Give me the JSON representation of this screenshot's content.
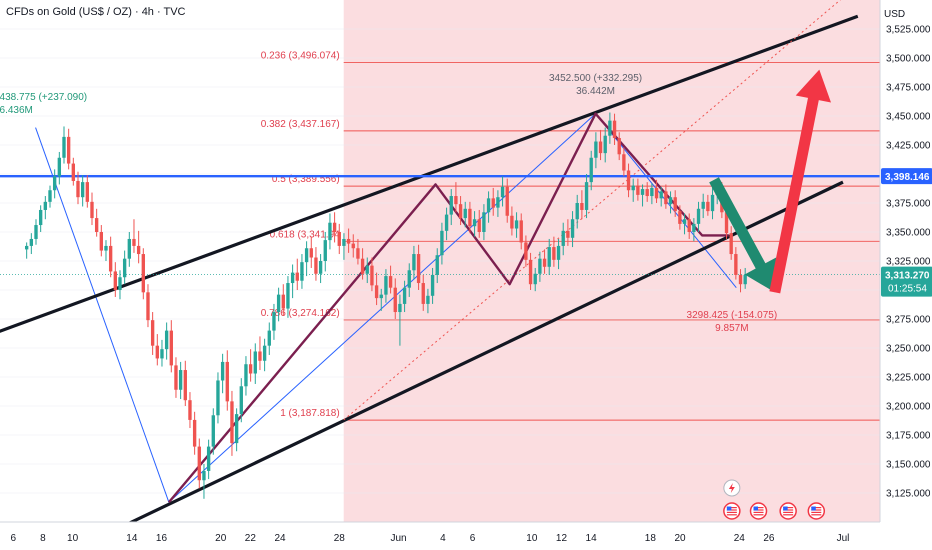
{
  "header": {
    "symbol_title": "CFDs on Gold (US$ / OZ) · 4h · TVC",
    "currency": "USD"
  },
  "colors": {
    "up": "#26a69a",
    "down": "#ef5350",
    "highlight_zone": "#fbdde0",
    "fib_line": "#ef5350",
    "resistance_line": "#2962ff",
    "channel_line": "#131722",
    "pattern_line": "#7b1f4f",
    "swing_line": "#2962ff",
    "arrow_green": "#1f8a70",
    "arrow_red": "#f23645"
  },
  "chart_data": {
    "type": "candlestick",
    "instrument": "CFDs on Gold (US$ / OZ)",
    "timeframe": "4h",
    "ylim": [
      3100,
      3550
    ],
    "y_ticks": [
      3125,
      3150,
      3175,
      3200,
      3225,
      3250,
      3275,
      3300,
      3325,
      3350,
      3375,
      3400,
      3425,
      3450,
      3475,
      3500,
      3525
    ],
    "y_tick_labels": [
      "3,125.000",
      "3,150.000",
      "3,175.000",
      "3,200.000",
      "3,225.000",
      "3,250.000",
      "3,275.000",
      "3,300.000",
      "3,325.000",
      "3,350.000",
      "3,375.000",
      "3,400.000",
      "3,425.000",
      "3,450.000",
      "3,475.000",
      "3,500.000",
      "3,525.000"
    ],
    "x_ticks": [
      {
        "label": "6",
        "d": 0
      },
      {
        "label": "8",
        "d": 2
      },
      {
        "label": "10",
        "d": 4
      },
      {
        "label": "14",
        "d": 8
      },
      {
        "label": "16",
        "d": 10
      },
      {
        "label": "20",
        "d": 14
      },
      {
        "label": "22",
        "d": 16
      },
      {
        "label": "24",
        "d": 18
      },
      {
        "label": "28",
        "d": 22
      },
      {
        "label": "Jun",
        "d": 26
      },
      {
        "label": "4",
        "d": 29
      },
      {
        "label": "6",
        "d": 31
      },
      {
        "label": "10",
        "d": 35
      },
      {
        "label": "12",
        "d": 37
      },
      {
        "label": "14",
        "d": 39
      },
      {
        "label": "18",
        "d": 43
      },
      {
        "label": "20",
        "d": 45
      },
      {
        "label": "24",
        "d": 49
      },
      {
        "label": "26",
        "d": 51
      },
      {
        "label": "Jul",
        "d": 56
      }
    ],
    "fib_levels": [
      {
        "label": "0.236 (3,496.074)",
        "value": 3496.074
      },
      {
        "label": "0.382 (3,437.167)",
        "value": 3437.167
      },
      {
        "label": "0.5 (3,389.556)",
        "value": 3389.556
      },
      {
        "label": "0.618 (3,341.94",
        "value": 3341.94
      },
      {
        "label": "0.786 (3,274.162)",
        "value": 3274.162
      },
      {
        "label": "1 (3,187.818)",
        "value": 3187.818
      }
    ],
    "highlight_zone": {
      "from_d": 22.3,
      "to_d": 58,
      "low": 3100,
      "high": 3550
    },
    "horizontal_line": {
      "value": 3398.146,
      "label": "3,398.146"
    },
    "last_price": {
      "value": 3313.27,
      "label": "3,313.270",
      "countdown": "01:25:54"
    },
    "channel_lines": [
      {
        "name": "upper",
        "points": [
          [
            -1,
            3264
          ],
          [
            57,
            3536
          ]
        ]
      },
      {
        "name": "lower",
        "points": [
          [
            7.5,
            3097
          ],
          [
            56,
            3393
          ]
        ]
      },
      {
        "name": "upper-dotted",
        "points": [
          [
            22.3,
            3188
          ],
          [
            56,
            3552
          ]
        ]
      }
    ],
    "zigzag_pattern": [
      [
        10.5,
        3117
      ],
      [
        28.5,
        3391
      ],
      [
        33.5,
        3305
      ],
      [
        39.3,
        3452
      ],
      [
        46.5,
        3347
      ],
      [
        48.3,
        3347
      ]
    ],
    "swing_lines": [
      [
        [
          1.5,
          3440
        ],
        [
          10.5,
          3117
        ]
      ],
      [
        [
          10.5,
          3117
        ],
        [
          39.3,
          3452
        ]
      ],
      [
        [
          39.3,
          3452
        ],
        [
          48.8,
          3302
        ]
      ]
    ],
    "arrows": [
      {
        "name": "green-down",
        "points": [
          [
            47.3,
            3395
          ],
          [
            51.4,
            3298
          ]
        ]
      },
      {
        "name": "red-up",
        "points": [
          [
            51.4,
            3298
          ],
          [
            54.4,
            3490
          ]
        ]
      }
    ],
    "annotations": [
      {
        "lines": [
          "438.775 (+237.090)",
          "6.436M"
        ],
        "at": [
          -1,
          3464
        ],
        "color": "green"
      },
      {
        "lines": [
          "3452.500 (+332.295)",
          "36.442M"
        ],
        "at": [
          39.3,
          3480
        ],
        "color": "grey"
      },
      {
        "lines": [
          "3298.425 (-154.075)",
          "9.857M"
        ],
        "at": [
          48.5,
          3276
        ],
        "color": "red"
      }
    ],
    "candles": [
      {
        "o": 3335,
        "h": 3341,
        "l": 3327,
        "c": 3338
      },
      {
        "o": 3338,
        "h": 3349,
        "l": 3331,
        "c": 3344
      },
      {
        "o": 3344,
        "h": 3361,
        "l": 3339,
        "c": 3356
      },
      {
        "o": 3356,
        "h": 3373,
        "l": 3350,
        "c": 3369
      },
      {
        "o": 3369,
        "h": 3381,
        "l": 3361,
        "c": 3376
      },
      {
        "o": 3376,
        "h": 3390,
        "l": 3371,
        "c": 3386
      },
      {
        "o": 3386,
        "h": 3404,
        "l": 3379,
        "c": 3398
      },
      {
        "o": 3398,
        "h": 3419,
        "l": 3391,
        "c": 3414
      },
      {
        "o": 3414,
        "h": 3441,
        "l": 3409,
        "c": 3432
      },
      {
        "o": 3432,
        "h": 3439,
        "l": 3404,
        "c": 3409
      },
      {
        "o": 3409,
        "h": 3414,
        "l": 3390,
        "c": 3394
      },
      {
        "o": 3394,
        "h": 3402,
        "l": 3374,
        "c": 3380
      },
      {
        "o": 3380,
        "h": 3399,
        "l": 3372,
        "c": 3393
      },
      {
        "o": 3393,
        "h": 3399,
        "l": 3371,
        "c": 3376
      },
      {
        "o": 3376,
        "h": 3384,
        "l": 3356,
        "c": 3362
      },
      {
        "o": 3362,
        "h": 3370,
        "l": 3346,
        "c": 3350
      },
      {
        "o": 3350,
        "h": 3356,
        "l": 3329,
        "c": 3334
      },
      {
        "o": 3334,
        "h": 3343,
        "l": 3325,
        "c": 3338
      },
      {
        "o": 3338,
        "h": 3346,
        "l": 3311,
        "c": 3316
      },
      {
        "o": 3316,
        "h": 3324,
        "l": 3294,
        "c": 3300
      },
      {
        "o": 3300,
        "h": 3317,
        "l": 3292,
        "c": 3311
      },
      {
        "o": 3311,
        "h": 3334,
        "l": 3305,
        "c": 3327
      },
      {
        "o": 3327,
        "h": 3350,
        "l": 3320,
        "c": 3344
      },
      {
        "o": 3344,
        "h": 3361,
        "l": 3332,
        "c": 3338
      },
      {
        "o": 3338,
        "h": 3351,
        "l": 3323,
        "c": 3331
      },
      {
        "o": 3331,
        "h": 3336,
        "l": 3292,
        "c": 3298
      },
      {
        "o": 3298,
        "h": 3305,
        "l": 3268,
        "c": 3274
      },
      {
        "o": 3274,
        "h": 3281,
        "l": 3244,
        "c": 3252
      },
      {
        "o": 3252,
        "h": 3262,
        "l": 3235,
        "c": 3241
      },
      {
        "o": 3241,
        "h": 3257,
        "l": 3234,
        "c": 3249
      },
      {
        "o": 3249,
        "h": 3272,
        "l": 3240,
        "c": 3265
      },
      {
        "o": 3265,
        "h": 3274,
        "l": 3229,
        "c": 3235
      },
      {
        "o": 3235,
        "h": 3242,
        "l": 3207,
        "c": 3214
      },
      {
        "o": 3214,
        "h": 3238,
        "l": 3206,
        "c": 3231
      },
      {
        "o": 3231,
        "h": 3239,
        "l": 3200,
        "c": 3205
      },
      {
        "o": 3205,
        "h": 3212,
        "l": 3181,
        "c": 3188
      },
      {
        "o": 3188,
        "h": 3195,
        "l": 3158,
        "c": 3165
      },
      {
        "o": 3165,
        "h": 3172,
        "l": 3129,
        "c": 3136
      },
      {
        "o": 3136,
        "h": 3150,
        "l": 3120,
        "c": 3144
      },
      {
        "o": 3144,
        "h": 3171,
        "l": 3137,
        "c": 3165
      },
      {
        "o": 3165,
        "h": 3198,
        "l": 3158,
        "c": 3192
      },
      {
        "o": 3192,
        "h": 3229,
        "l": 3185,
        "c": 3222
      },
      {
        "o": 3222,
        "h": 3245,
        "l": 3211,
        "c": 3238
      },
      {
        "o": 3238,
        "h": 3248,
        "l": 3196,
        "c": 3204
      },
      {
        "o": 3204,
        "h": 3213,
        "l": 3157,
        "c": 3168
      },
      {
        "o": 3168,
        "h": 3198,
        "l": 3161,
        "c": 3193
      },
      {
        "o": 3193,
        "h": 3224,
        "l": 3186,
        "c": 3217
      },
      {
        "o": 3217,
        "h": 3243,
        "l": 3209,
        "c": 3236
      },
      {
        "o": 3236,
        "h": 3249,
        "l": 3221,
        "c": 3228
      },
      {
        "o": 3228,
        "h": 3254,
        "l": 3219,
        "c": 3247
      },
      {
        "o": 3247,
        "h": 3260,
        "l": 3231,
        "c": 3239
      },
      {
        "o": 3239,
        "h": 3258,
        "l": 3230,
        "c": 3252
      },
      {
        "o": 3252,
        "h": 3272,
        "l": 3244,
        "c": 3265
      },
      {
        "o": 3265,
        "h": 3288,
        "l": 3257,
        "c": 3281
      },
      {
        "o": 3281,
        "h": 3302,
        "l": 3273,
        "c": 3296
      },
      {
        "o": 3296,
        "h": 3305,
        "l": 3278,
        "c": 3284
      },
      {
        "o": 3284,
        "h": 3312,
        "l": 3276,
        "c": 3306
      },
      {
        "o": 3306,
        "h": 3322,
        "l": 3293,
        "c": 3315
      },
      {
        "o": 3315,
        "h": 3327,
        "l": 3300,
        "c": 3308
      },
      {
        "o": 3308,
        "h": 3331,
        "l": 3301,
        "c": 3324
      },
      {
        "o": 3324,
        "h": 3342,
        "l": 3312,
        "c": 3336
      },
      {
        "o": 3336,
        "h": 3346,
        "l": 3319,
        "c": 3328
      },
      {
        "o": 3328,
        "h": 3337,
        "l": 3308,
        "c": 3314
      },
      {
        "o": 3314,
        "h": 3331,
        "l": 3306,
        "c": 3325
      },
      {
        "o": 3325,
        "h": 3350,
        "l": 3316,
        "c": 3343
      },
      {
        "o": 3343,
        "h": 3366,
        "l": 3335,
        "c": 3358
      },
      {
        "o": 3358,
        "h": 3367,
        "l": 3341,
        "c": 3350
      },
      {
        "o": 3350,
        "h": 3357,
        "l": 3331,
        "c": 3338
      },
      {
        "o": 3338,
        "h": 3349,
        "l": 3326,
        "c": 3344
      },
      {
        "o": 3344,
        "h": 3353,
        "l": 3332,
        "c": 3340
      },
      {
        "o": 3340,
        "h": 3348,
        "l": 3328,
        "c": 3336
      },
      {
        "o": 3336,
        "h": 3344,
        "l": 3322,
        "c": 3327
      },
      {
        "o": 3327,
        "h": 3336,
        "l": 3309,
        "c": 3314
      },
      {
        "o": 3314,
        "h": 3328,
        "l": 3306,
        "c": 3321
      },
      {
        "o": 3321,
        "h": 3328,
        "l": 3299,
        "c": 3304
      },
      {
        "o": 3304,
        "h": 3315,
        "l": 3287,
        "c": 3293
      },
      {
        "o": 3293,
        "h": 3301,
        "l": 3282,
        "c": 3296
      },
      {
        "o": 3296,
        "h": 3318,
        "l": 3289,
        "c": 3312
      },
      {
        "o": 3312,
        "h": 3321,
        "l": 3297,
        "c": 3302
      },
      {
        "o": 3302,
        "h": 3310,
        "l": 3275,
        "c": 3281
      },
      {
        "o": 3281,
        "h": 3296,
        "l": 3252,
        "c": 3288
      },
      {
        "o": 3288,
        "h": 3308,
        "l": 3281,
        "c": 3302
      },
      {
        "o": 3302,
        "h": 3323,
        "l": 3294,
        "c": 3317
      },
      {
        "o": 3317,
        "h": 3338,
        "l": 3309,
        "c": 3331
      },
      {
        "o": 3331,
        "h": 3339,
        "l": 3300,
        "c": 3306
      },
      {
        "o": 3306,
        "h": 3313,
        "l": 3282,
        "c": 3288
      },
      {
        "o": 3288,
        "h": 3301,
        "l": 3280,
        "c": 3295
      },
      {
        "o": 3295,
        "h": 3319,
        "l": 3288,
        "c": 3313
      },
      {
        "o": 3313,
        "h": 3336,
        "l": 3306,
        "c": 3330
      },
      {
        "o": 3330,
        "h": 3358,
        "l": 3322,
        "c": 3351
      },
      {
        "o": 3351,
        "h": 3371,
        "l": 3343,
        "c": 3365
      },
      {
        "o": 3365,
        "h": 3387,
        "l": 3356,
        "c": 3381
      },
      {
        "o": 3381,
        "h": 3393,
        "l": 3367,
        "c": 3374
      },
      {
        "o": 3374,
        "h": 3381,
        "l": 3356,
        "c": 3362
      },
      {
        "o": 3362,
        "h": 3376,
        "l": 3354,
        "c": 3370
      },
      {
        "o": 3370,
        "h": 3376,
        "l": 3349,
        "c": 3355
      },
      {
        "o": 3355,
        "h": 3368,
        "l": 3346,
        "c": 3361
      },
      {
        "o": 3361,
        "h": 3369,
        "l": 3345,
        "c": 3350
      },
      {
        "o": 3350,
        "h": 3374,
        "l": 3343,
        "c": 3367
      },
      {
        "o": 3367,
        "h": 3385,
        "l": 3358,
        "c": 3379
      },
      {
        "o": 3379,
        "h": 3388,
        "l": 3364,
        "c": 3371
      },
      {
        "o": 3371,
        "h": 3386,
        "l": 3363,
        "c": 3380
      },
      {
        "o": 3380,
        "h": 3398,
        "l": 3372,
        "c": 3389
      },
      {
        "o": 3389,
        "h": 3396,
        "l": 3358,
        "c": 3364
      },
      {
        "o": 3364,
        "h": 3372,
        "l": 3347,
        "c": 3353
      },
      {
        "o": 3353,
        "h": 3367,
        "l": 3345,
        "c": 3360
      },
      {
        "o": 3360,
        "h": 3366,
        "l": 3335,
        "c": 3341
      },
      {
        "o": 3341,
        "h": 3347,
        "l": 3320,
        "c": 3326
      },
      {
        "o": 3326,
        "h": 3332,
        "l": 3300,
        "c": 3305
      },
      {
        "o": 3305,
        "h": 3319,
        "l": 3299,
        "c": 3314
      },
      {
        "o": 3314,
        "h": 3333,
        "l": 3307,
        "c": 3327
      },
      {
        "o": 3327,
        "h": 3335,
        "l": 3314,
        "c": 3320
      },
      {
        "o": 3320,
        "h": 3344,
        "l": 3313,
        "c": 3337
      },
      {
        "o": 3337,
        "h": 3346,
        "l": 3320,
        "c": 3326
      },
      {
        "o": 3326,
        "h": 3344,
        "l": 3318,
        "c": 3338
      },
      {
        "o": 3338,
        "h": 3358,
        "l": 3330,
        "c": 3351
      },
      {
        "o": 3351,
        "h": 3361,
        "l": 3338,
        "c": 3345
      },
      {
        "o": 3345,
        "h": 3368,
        "l": 3337,
        "c": 3361
      },
      {
        "o": 3361,
        "h": 3382,
        "l": 3353,
        "c": 3375
      },
      {
        "o": 3375,
        "h": 3386,
        "l": 3361,
        "c": 3369
      },
      {
        "o": 3369,
        "h": 3400,
        "l": 3362,
        "c": 3393
      },
      {
        "o": 3393,
        "h": 3420,
        "l": 3386,
        "c": 3414
      },
      {
        "o": 3414,
        "h": 3436,
        "l": 3405,
        "c": 3428
      },
      {
        "o": 3428,
        "h": 3438,
        "l": 3412,
        "c": 3418
      },
      {
        "o": 3418,
        "h": 3440,
        "l": 3410,
        "c": 3433
      },
      {
        "o": 3433,
        "h": 3453,
        "l": 3426,
        "c": 3446
      },
      {
        "o": 3446,
        "h": 3452,
        "l": 3425,
        "c": 3431
      },
      {
        "o": 3431,
        "h": 3436,
        "l": 3412,
        "c": 3417
      },
      {
        "o": 3417,
        "h": 3423,
        "l": 3398,
        "c": 3403
      },
      {
        "o": 3403,
        "h": 3409,
        "l": 3380,
        "c": 3386
      },
      {
        "o": 3386,
        "h": 3396,
        "l": 3376,
        "c": 3390
      },
      {
        "o": 3390,
        "h": 3396,
        "l": 3377,
        "c": 3382
      },
      {
        "o": 3382,
        "h": 3391,
        "l": 3372,
        "c": 3387
      },
      {
        "o": 3387,
        "h": 3393,
        "l": 3376,
        "c": 3381
      },
      {
        "o": 3381,
        "h": 3392,
        "l": 3374,
        "c": 3388
      },
      {
        "o": 3388,
        "h": 3395,
        "l": 3375,
        "c": 3379
      },
      {
        "o": 3379,
        "h": 3389,
        "l": 3372,
        "c": 3385
      },
      {
        "o": 3385,
        "h": 3391,
        "l": 3370,
        "c": 3374
      },
      {
        "o": 3374,
        "h": 3385,
        "l": 3366,
        "c": 3380
      },
      {
        "o": 3380,
        "h": 3386,
        "l": 3363,
        "c": 3368
      },
      {
        "o": 3368,
        "h": 3373,
        "l": 3352,
        "c": 3357
      },
      {
        "o": 3357,
        "h": 3366,
        "l": 3348,
        "c": 3361
      },
      {
        "o": 3361,
        "h": 3366,
        "l": 3344,
        "c": 3350
      },
      {
        "o": 3350,
        "h": 3362,
        "l": 3342,
        "c": 3357
      },
      {
        "o": 3357,
        "h": 3376,
        "l": 3350,
        "c": 3370
      },
      {
        "o": 3370,
        "h": 3383,
        "l": 3362,
        "c": 3376
      },
      {
        "o": 3376,
        "h": 3382,
        "l": 3364,
        "c": 3368
      },
      {
        "o": 3368,
        "h": 3389,
        "l": 3361,
        "c": 3382
      },
      {
        "o": 3382,
        "h": 3396,
        "l": 3374,
        "c": 3388
      },
      {
        "o": 3388,
        "h": 3393,
        "l": 3362,
        "c": 3367
      },
      {
        "o": 3367,
        "h": 3372,
        "l": 3344,
        "c": 3349
      },
      {
        "o": 3349,
        "h": 3355,
        "l": 3326,
        "c": 3331
      },
      {
        "o": 3331,
        "h": 3337,
        "l": 3309,
        "c": 3313
      },
      {
        "o": 3313,
        "h": 3318,
        "l": 3298,
        "c": 3305
      },
      {
        "o": 3305,
        "h": 3319,
        "l": 3301,
        "c": 3313
      }
    ]
  }
}
